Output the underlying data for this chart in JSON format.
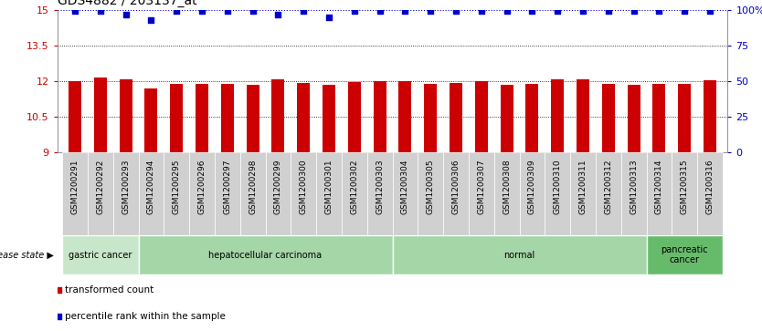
{
  "title": "GDS4882 / 203137_at",
  "samples": [
    "GSM1200291",
    "GSM1200292",
    "GSM1200293",
    "GSM1200294",
    "GSM1200295",
    "GSM1200296",
    "GSM1200297",
    "GSM1200298",
    "GSM1200299",
    "GSM1200300",
    "GSM1200301",
    "GSM1200302",
    "GSM1200303",
    "GSM1200304",
    "GSM1200305",
    "GSM1200306",
    "GSM1200307",
    "GSM1200308",
    "GSM1200309",
    "GSM1200310",
    "GSM1200311",
    "GSM1200312",
    "GSM1200313",
    "GSM1200314",
    "GSM1200315",
    "GSM1200316"
  ],
  "bar_values": [
    12.01,
    12.15,
    12.06,
    11.7,
    11.9,
    11.9,
    11.9,
    11.85,
    12.06,
    11.92,
    11.86,
    11.96,
    12.01,
    12.01,
    11.87,
    11.92,
    12.01,
    11.85,
    11.9,
    12.07,
    12.07,
    11.9,
    11.86,
    11.9,
    11.9,
    12.05
  ],
  "percentile_values": [
    99,
    99,
    97,
    93,
    99,
    99,
    99,
    99,
    97,
    99,
    95,
    99,
    99,
    99,
    99,
    99,
    99,
    99,
    99,
    99,
    99,
    99,
    99,
    99,
    99,
    99
  ],
  "bar_color": "#cc0000",
  "percentile_color": "#0000cc",
  "ylim_left": [
    9,
    15
  ],
  "ylim_right": [
    0,
    100
  ],
  "yticks_left": [
    9,
    10.5,
    12,
    13.5,
    15
  ],
  "ytick_labels_left": [
    "9",
    "10.5",
    "12",
    "13.5",
    "15"
  ],
  "yticks_right": [
    0,
    25,
    50,
    75,
    100
  ],
  "ytick_labels_right": [
    "0",
    "25",
    "50",
    "75",
    "100%"
  ],
  "hlines": [
    10.5,
    12.0,
    13.5
  ],
  "disease_groups": [
    {
      "label": "gastric cancer",
      "start": 0,
      "end": 3,
      "color": "#c8e6c9"
    },
    {
      "label": "hepatocellular carcinoma",
      "start": 3,
      "end": 13,
      "color": "#a5d6a7"
    },
    {
      "label": "normal",
      "start": 13,
      "end": 23,
      "color": "#a5d6a7"
    },
    {
      "label": "pancreatic\ncancer",
      "start": 23,
      "end": 26,
      "color": "#66bb6a"
    }
  ],
  "legend_items": [
    {
      "label": "transformed count",
      "color": "#cc0000"
    },
    {
      "label": "percentile rank within the sample",
      "color": "#0000cc"
    }
  ],
  "bar_width": 0.5,
  "background_color": "#ffffff",
  "ticklabel_color_left": "#cc0000",
  "ticklabel_color_right": "#0000cc",
  "title_fontsize": 10,
  "tick_fontsize": 8,
  "xtick_fontsize": 6.5,
  "n_samples": 26
}
